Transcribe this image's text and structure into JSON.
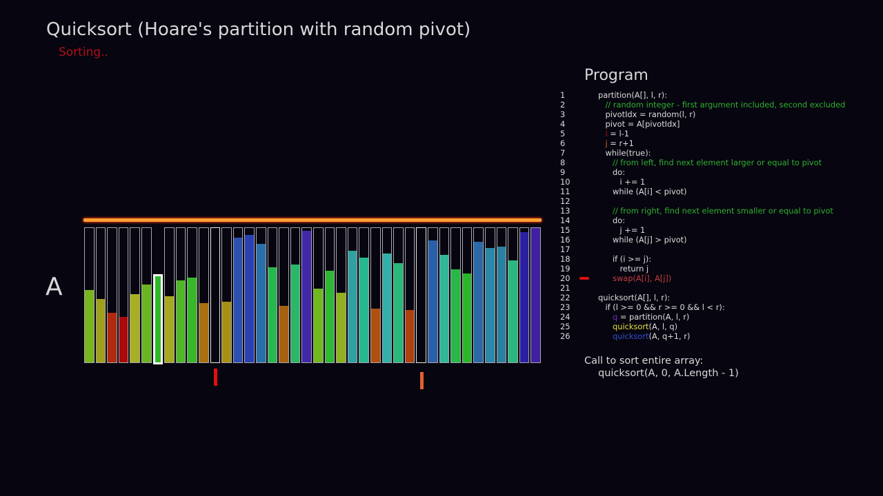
{
  "title": "Quicksort (Hoare's partition with random pivot)",
  "status": "Sorting..",
  "array_label": "A",
  "colors": {
    "range_line": "#ffa030",
    "i_marker": "#e01010",
    "j_marker": "#e06030",
    "highlight": "#ffffff"
  },
  "array": {
    "values": [
      0.54,
      0.47,
      0.37,
      0.34,
      0.51,
      0.58,
      0.63,
      0.49,
      0.61,
      0.63,
      0.44,
      0,
      0.45,
      0.93,
      0.95,
      0.88,
      0.71,
      0.42,
      0.73,
      0.98,
      0.55,
      0.68,
      0.52,
      0.83,
      0.78,
      0.4,
      0.81,
      0.74,
      0.39,
      0,
      0.91,
      0.8,
      0.69,
      0.66,
      0.9,
      0.85,
      0.86,
      0.76,
      0.97,
      1.0
    ],
    "colors": [
      "#7ab51d",
      "#a0a01a",
      "#b02a10",
      "#aa0a0a",
      "#a8b020",
      "#6ab520",
      "#2fb82a",
      "#a8a820",
      "#50b825",
      "#38b82a",
      "#a87010",
      "#07050f",
      "#a89015",
      "#2a50b0",
      "#2a40b0",
      "#2a70a8",
      "#28b850",
      "#a86010",
      "#28b868",
      "#4028a8",
      "#70b820",
      "#30b835",
      "#90b020",
      "#30a0a0",
      "#28b890",
      "#b05010",
      "#30b0a8",
      "#28b878",
      "#b04010",
      "#07050f",
      "#2a60a8",
      "#30b898",
      "#28b848",
      "#28b828",
      "#2a68a8",
      "#2a88a8",
      "#2a80a0",
      "#28b880",
      "#2a20a0",
      "#4020a0"
    ],
    "highlighted_index": 6,
    "empty_indices": [
      11,
      29
    ],
    "i_marker_index": 11,
    "j_marker_index": 29
  },
  "program": {
    "title": "Program",
    "current_line": 20,
    "lines": [
      {
        "n": "1",
        "indent": 0,
        "parts": [
          {
            "t": "partition(A[], l, r):",
            "c": "#dddddd"
          }
        ]
      },
      {
        "n": "2",
        "indent": 1,
        "parts": [
          {
            "t": "// random integer - first argument included, second excluded",
            "c": "#30b030"
          }
        ]
      },
      {
        "n": "3",
        "indent": 1,
        "parts": [
          {
            "t": "pivotIdx = random(l, r)",
            "c": "#dddddd"
          }
        ]
      },
      {
        "n": "4",
        "indent": 1,
        "parts": [
          {
            "t": "pivot = A[pivotIdx]",
            "c": "#dddddd"
          }
        ]
      },
      {
        "n": "5",
        "indent": 1,
        "parts": [
          {
            "t": "i",
            "c": "#b01818"
          },
          {
            "t": " = l-1",
            "c": "#dddddd"
          }
        ]
      },
      {
        "n": "6",
        "indent": 1,
        "parts": [
          {
            "t": "j",
            "c": "#d06030"
          },
          {
            "t": " = r+1",
            "c": "#dddddd"
          }
        ]
      },
      {
        "n": "7",
        "indent": 1,
        "parts": [
          {
            "t": "while(true):",
            "c": "#dddddd"
          }
        ]
      },
      {
        "n": "8",
        "indent": 2,
        "parts": [
          {
            "t": "// from left, find next element larger or equal to pivot",
            "c": "#30b030"
          }
        ]
      },
      {
        "n": "9",
        "indent": 2,
        "parts": [
          {
            "t": "do:",
            "c": "#dddddd"
          }
        ]
      },
      {
        "n": "10",
        "indent": 3,
        "parts": [
          {
            "t": "i += 1",
            "c": "#dddddd"
          }
        ]
      },
      {
        "n": "11",
        "indent": 2,
        "parts": [
          {
            "t": "while (A[i] < pivot)",
            "c": "#dddddd"
          }
        ]
      },
      {
        "n": "12",
        "indent": 0,
        "parts": []
      },
      {
        "n": "13",
        "indent": 2,
        "parts": [
          {
            "t": "// from right, find next element smaller or equal to pivot",
            "c": "#30b030"
          }
        ]
      },
      {
        "n": "14",
        "indent": 2,
        "parts": [
          {
            "t": "do:",
            "c": "#dddddd"
          }
        ]
      },
      {
        "n": "15",
        "indent": 3,
        "parts": [
          {
            "t": "j += 1",
            "c": "#dddddd"
          }
        ]
      },
      {
        "n": "16",
        "indent": 2,
        "parts": [
          {
            "t": "while (A[j] > pivot)",
            "c": "#dddddd"
          }
        ]
      },
      {
        "n": "17",
        "indent": 0,
        "parts": []
      },
      {
        "n": "18",
        "indent": 2,
        "parts": [
          {
            "t": "if (i >= j):",
            "c": "#dddddd"
          }
        ]
      },
      {
        "n": "19",
        "indent": 3,
        "parts": [
          {
            "t": "return j",
            "c": "#dddddd"
          }
        ]
      },
      {
        "n": "20",
        "indent": 2,
        "parts": [
          {
            "t": "swap(A[i], A[j])",
            "c": "#c04040"
          }
        ]
      },
      {
        "n": "21",
        "indent": 0,
        "parts": []
      },
      {
        "n": "22",
        "indent": 0,
        "parts": [
          {
            "t": "quicksort(A[], l, r):",
            "c": "#dddddd"
          }
        ]
      },
      {
        "n": "23",
        "indent": 1,
        "parts": [
          {
            "t": "if (l >= 0 && r >= 0 && l < r):",
            "c": "#dddddd"
          }
        ]
      },
      {
        "n": "24",
        "indent": 2,
        "parts": [
          {
            "t": "q",
            "c": "#7030c0"
          },
          {
            "t": " = partition(A, l, r)",
            "c": "#dddddd"
          }
        ]
      },
      {
        "n": "25",
        "indent": 2,
        "parts": [
          {
            "t": "quicksort",
            "c": "#e0e040"
          },
          {
            "t": "(A, l, q)",
            "c": "#dddddd"
          }
        ]
      },
      {
        "n": "26",
        "indent": 2,
        "parts": [
          {
            "t": "quicksort",
            "c": "#3050d0"
          },
          {
            "t": "(A, q+1, r)",
            "c": "#dddddd"
          }
        ]
      }
    ]
  },
  "call": {
    "label": "Call to sort entire array:",
    "code": "quicksort(A, 0, A.Length - 1)"
  }
}
